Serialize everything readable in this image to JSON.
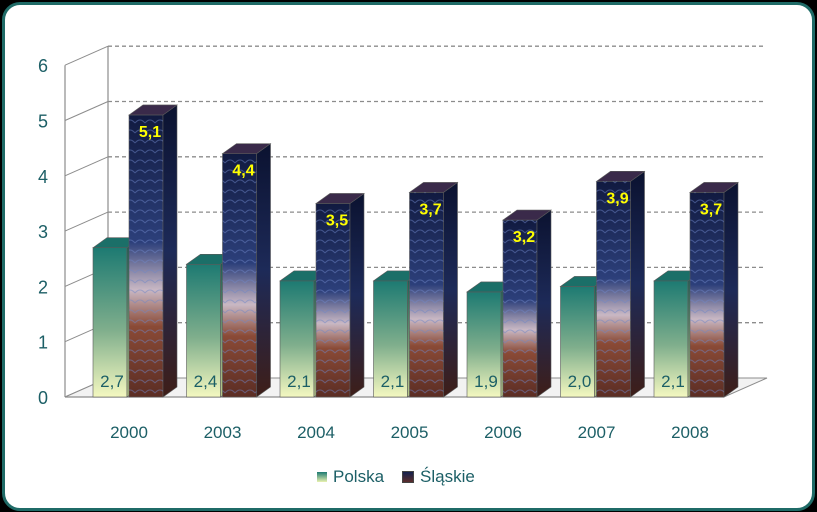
{
  "chart_data": {
    "type": "bar",
    "categories": [
      "2000",
      "2003",
      "2004",
      "2005",
      "2006",
      "2007",
      "2008"
    ],
    "series": [
      {
        "name": "Polska",
        "values": [
          2.7,
          2.4,
          2.1,
          2.1,
          1.9,
          2.0,
          2.1
        ],
        "labels": [
          "2,7",
          "2,4",
          "2,1",
          "2,1",
          "1,9",
          "2,0",
          "2,1"
        ]
      },
      {
        "name": "Śląskie",
        "values": [
          5.1,
          4.4,
          3.5,
          3.7,
          3.2,
          3.9,
          3.7
        ],
        "labels": [
          "5,1",
          "4,4",
          "3,5",
          "3,7",
          "3,2",
          "3,9",
          "3,7"
        ]
      }
    ],
    "yticks": [
      "0",
      "1",
      "2",
      "3",
      "4",
      "5",
      "6"
    ],
    "ylim": [
      0,
      6
    ],
    "grid": true,
    "legend_position": "bottom",
    "colors": {
      "polska_top": "#1d7a72",
      "polska_bottom": "#f4f8c0",
      "slaskie_top": "#14204d",
      "slaskie_bottom": "#6b3428",
      "label_polska": "#1c5f66",
      "label_slaskie": "#ffff00",
      "frame": "#1f6b67"
    }
  },
  "legend": {
    "polska": "Polska",
    "slaskie": "Śląskie"
  }
}
